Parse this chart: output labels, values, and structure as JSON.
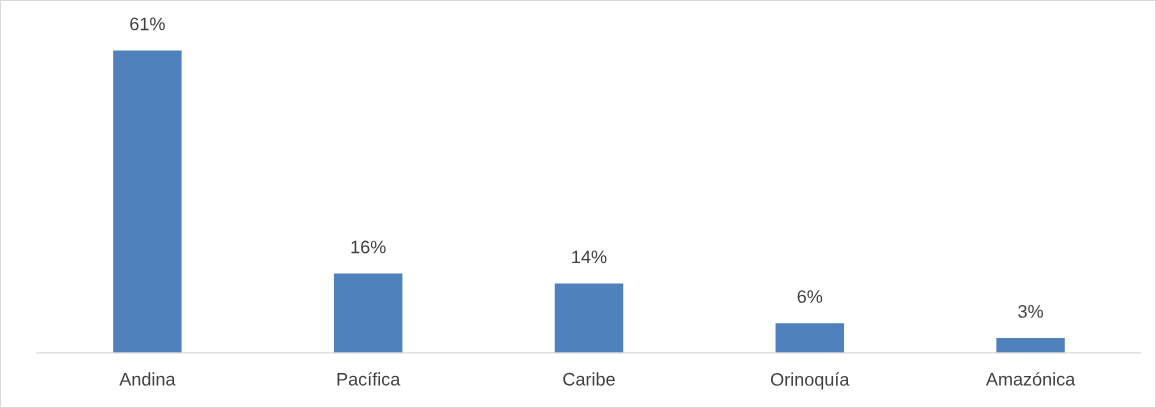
{
  "chart_data": {
    "type": "bar",
    "categories": [
      "Andina",
      "Pacífica",
      "Caribe",
      "Orinoquía",
      "Amazónica"
    ],
    "values": [
      61,
      16,
      14,
      6,
      3
    ],
    "value_labels": [
      "61%",
      "16%",
      "14%",
      "6%",
      "3%"
    ],
    "color": "#4f81bd",
    "grid": false,
    "legend": false
  }
}
